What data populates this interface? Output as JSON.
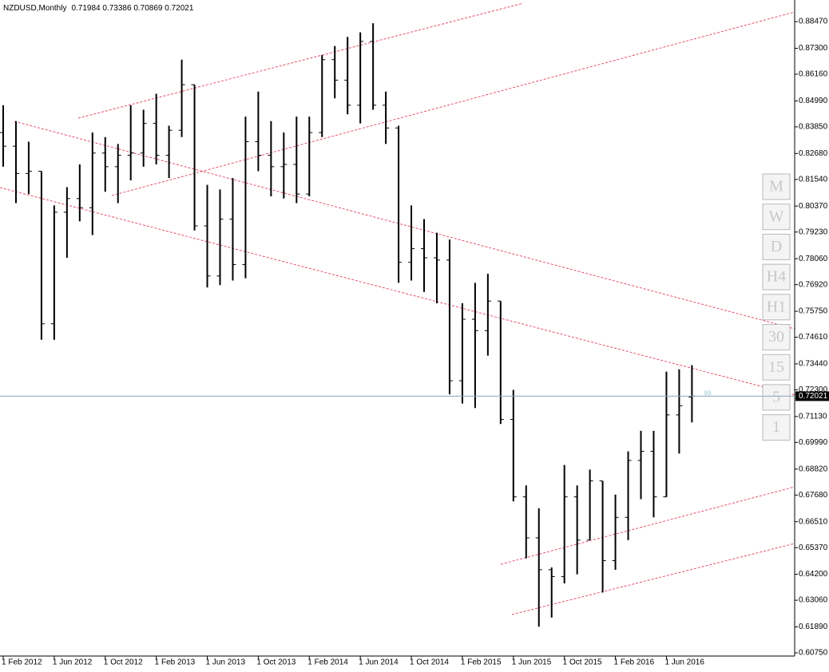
{
  "header": {
    "symbol": "NZDUSD,Monthly",
    "ohlc": "0.71984 0.73386 0.70869 0.72021"
  },
  "chart_data": {
    "type": "ohlc",
    "categories": [
      "1 Feb 2012",
      null,
      null,
      null,
      "1 Jun 2012",
      null,
      null,
      null,
      "1 Oct 2012",
      null,
      null,
      null,
      "1 Feb 2013",
      null,
      null,
      null,
      "1 Jun 2013",
      null,
      null,
      null,
      "1 Oct 2013",
      null,
      null,
      null,
      "1 Feb 2014",
      null,
      null,
      null,
      "1 Jun 2014",
      null,
      null,
      null,
      "1 Oct 2014",
      null,
      null,
      null,
      "1 Feb 2015",
      null,
      null,
      null,
      "1 Jun 2015",
      null,
      null,
      null,
      "1 Oct 2015",
      null,
      null,
      null,
      "1 Feb 2016",
      null,
      null,
      null,
      "1 Jun 2016",
      null,
      null
    ],
    "open": [
      0.836,
      0.83,
      0.818,
      0.819,
      0.752,
      0.801,
      0.807,
      0.803,
      0.827,
      0.821,
      0.826,
      0.827,
      0.84,
      0.826,
      0.837,
      0.857,
      0.795,
      0.773,
      0.798,
      0.778,
      0.832,
      0.826,
      0.821,
      0.822,
      0.809,
      0.836,
      0.868,
      0.859,
      0.848,
      0.876,
      0.848,
      0.838,
      0.779,
      0.785,
      0.781,
      0.78,
      0.727,
      0.754,
      0.749,
      0.762,
      0.71,
      0.676,
      0.658,
      0.644,
      0.641,
      0.676,
      0.657,
      0.683,
      0.648,
      0.667,
      0.692,
      0.696,
      0.676,
      0.712,
      0.71984
    ],
    "high": [
      0.848,
      0.841,
      0.832,
      0.819,
      0.804,
      0.812,
      0.822,
      0.836,
      0.834,
      0.831,
      0.848,
      0.846,
      0.853,
      0.839,
      0.868,
      0.857,
      0.813,
      0.811,
      0.816,
      0.843,
      0.854,
      0.841,
      0.836,
      0.843,
      0.843,
      0.87,
      0.874,
      0.878,
      0.88,
      0.884,
      0.854,
      0.839,
      0.804,
      0.798,
      0.792,
      0.789,
      0.761,
      0.77,
      0.774,
      0.762,
      0.723,
      0.681,
      0.671,
      0.645,
      0.69,
      0.681,
      0.688,
      0.683,
      0.677,
      0.696,
      0.705,
      0.705,
      0.731,
      0.732,
      0.73386
    ],
    "low": [
      0.821,
      0.805,
      0.809,
      0.745,
      0.745,
      0.781,
      0.797,
      0.791,
      0.81,
      0.805,
      0.815,
      0.821,
      0.822,
      0.816,
      0.834,
      0.793,
      0.768,
      0.769,
      0.771,
      0.772,
      0.819,
      0.808,
      0.807,
      0.805,
      0.808,
      0.834,
      0.851,
      0.844,
      0.84,
      0.846,
      0.831,
      0.77,
      0.771,
      0.766,
      0.761,
      0.721,
      0.717,
      0.715,
      0.738,
      0.708,
      0.674,
      0.649,
      0.619,
      0.623,
      0.638,
      0.642,
      0.657,
      0.634,
      0.644,
      0.657,
      0.675,
      0.667,
      0.676,
      0.695,
      0.70869
    ],
    "close": [
      0.83,
      0.818,
      0.819,
      0.752,
      0.801,
      0.807,
      0.803,
      0.827,
      0.821,
      0.826,
      0.827,
      0.84,
      0.826,
      0.837,
      0.857,
      0.795,
      0.773,
      0.798,
      0.778,
      0.832,
      0.826,
      0.821,
      0.822,
      0.809,
      0.836,
      0.868,
      0.859,
      0.848,
      0.876,
      0.848,
      0.838,
      0.779,
      0.785,
      0.781,
      0.78,
      0.727,
      0.754,
      0.749,
      0.762,
      0.71,
      0.676,
      0.658,
      0.644,
      0.641,
      0.676,
      0.657,
      0.683,
      0.648,
      0.667,
      0.692,
      0.696,
      0.676,
      0.712,
      0.716,
      0.72021
    ],
    "color": "#000000",
    "ylim": [
      0.6061,
      0.8942
    ],
    "yticks": [
      {
        "value": 0.8847,
        "label": "0.88470"
      },
      {
        "value": 0.873,
        "label": "0.87300"
      },
      {
        "value": 0.8616,
        "label": "0.86160"
      },
      {
        "value": 0.8499,
        "label": "0.84990"
      },
      {
        "value": 0.8385,
        "label": "0.83850"
      },
      {
        "value": 0.8268,
        "label": "0.82680"
      },
      {
        "value": 0.8154,
        "label": "0.81540"
      },
      {
        "value": 0.8037,
        "label": "0.80370"
      },
      {
        "value": 0.7923,
        "label": "0.79230"
      },
      {
        "value": 0.7806,
        "label": "0.78060"
      },
      {
        "value": 0.7692,
        "label": "0.76920"
      },
      {
        "value": 0.7575,
        "label": "0.75750"
      },
      {
        "value": 0.7461,
        "label": "0.74610"
      },
      {
        "value": 0.7344,
        "label": "0.73440"
      },
      {
        "value": 0.723,
        "label": "0.72300"
      },
      {
        "value": 0.7113,
        "label": "0.71130"
      },
      {
        "value": 0.6999,
        "label": "0.69990"
      },
      {
        "value": 0.6882,
        "label": "0.68820"
      },
      {
        "value": 0.6768,
        "label": "0.67680"
      },
      {
        "value": 0.6651,
        "label": "0.66510"
      },
      {
        "value": 0.6537,
        "label": "0.65370"
      },
      {
        "value": 0.642,
        "label": "0.64200"
      },
      {
        "value": 0.6306,
        "label": "0.63060"
      },
      {
        "value": 0.6189,
        "label": "0.61890"
      },
      {
        "value": 0.6075,
        "label": "0.60750"
      }
    ],
    "current_price_label": "0.72021",
    "marker_label": "99",
    "grid": false
  },
  "timeframes": [
    "M",
    "W",
    "D",
    "H4",
    "H1",
    "30",
    "15",
    "5",
    "1"
  ]
}
